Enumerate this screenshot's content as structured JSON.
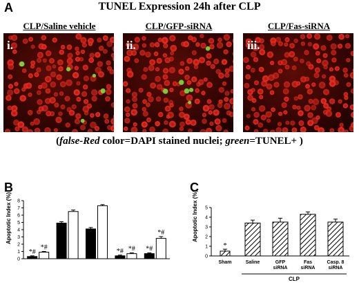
{
  "figure": {
    "panel_a_letter": "A",
    "title": "TUNEL Expression 24h after CLP",
    "images": [
      {
        "label": "CLP/Saline vehicle",
        "roman": "i."
      },
      {
        "label": "CLP/GFP-siRNA",
        "roman": "ii."
      },
      {
        "label": "CLP/Fas-siRNA",
        "roman": "iii."
      }
    ],
    "caption": {
      "open": "(",
      "false_red": "false-Red",
      "mid": " color=DAPI stained nuclei; ",
      "green": "green",
      "end": "=TUNEL+ )"
    },
    "panel_b_letter": "B",
    "panel_c_letter": "C"
  },
  "colors": {
    "nuclei": "#e52a1e",
    "tunel": "#7be03b",
    "background": "#3a0603"
  },
  "chart_data": [
    {
      "type": "bar",
      "panel": "B",
      "ylabel": "Apoptotic\nIndex (%)",
      "ylim": [
        0,
        8
      ],
      "yticks": [
        "0",
        "1",
        "2",
        "3",
        "4",
        "5",
        "6",
        "7",
        "8"
      ],
      "categories": [
        "",
        "",
        "",
        "",
        ""
      ],
      "series": [
        {
          "fill": "#000000",
          "values": [
            0.3,
            4.9,
            4.1,
            0.4,
            0.7
          ],
          "errors": [
            0.1,
            0.2,
            0.2,
            0.1,
            0.1
          ]
        },
        {
          "fill": "#ffffff",
          "values": [
            0.9,
            6.5,
            7.3,
            0.7,
            2.8
          ],
          "errors": [
            0.1,
            0.2,
            0.15,
            0.1,
            0.25
          ]
        }
      ],
      "annotations": [
        {
          "index": 0,
          "series": 0,
          "text": "*#"
        },
        {
          "index": 0,
          "series": 1,
          "text": "*#"
        },
        {
          "index": 3,
          "series": 0,
          "text": "*#"
        },
        {
          "index": 3,
          "series": 1,
          "text": "*#"
        },
        {
          "index": 4,
          "series": 0,
          "text": "*#"
        },
        {
          "index": 4,
          "series": 1,
          "text": "*#"
        }
      ]
    },
    {
      "type": "bar",
      "panel": "C",
      "ylabel": "Apoptotic\nIndex (%)",
      "ylim": [
        0,
        5
      ],
      "yticks": [
        "0",
        "1",
        "2",
        "3",
        "4",
        "5"
      ],
      "categories": [
        "Sham",
        "Saline",
        "GFP\nsiRNA",
        "Fas\nsiRNA",
        "Casp. 8\nsiRNA"
      ],
      "values": [
        0.5,
        3.4,
        3.5,
        4.3,
        3.5
      ],
      "errors": [
        0.2,
        0.3,
        0.4,
        0.25,
        0.3
      ],
      "fill": "diagonal-hatch",
      "annotations": [
        {
          "index": 0,
          "text": "*"
        }
      ],
      "group_label": "CLP"
    }
  ]
}
